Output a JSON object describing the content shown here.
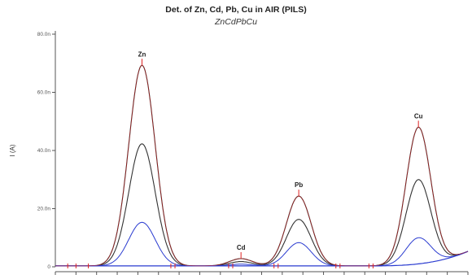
{
  "chart_data": {
    "type": "line",
    "title": "Det. of Zn, Cd, Pb, Cu in AIR (PILS)",
    "subtitle": "ZnCdPbCu",
    "ylabel": "I (A)",
    "ylim": [
      0,
      80
    ],
    "yticks": [
      0,
      20,
      40,
      60,
      80
    ],
    "ytick_labels": [
      "0",
      "20.0n",
      "40.0n",
      "60.0n",
      "80.0n"
    ],
    "y_unit": "nA",
    "x_range": [
      0,
      100
    ],
    "grid": false,
    "colors": {
      "peaks": "#222222",
      "markers": "#e02020",
      "blue": "#2a3bd0",
      "axis": "#555555"
    },
    "peaks": [
      {
        "label": "Zn",
        "x": 21,
        "heights": [
          69,
          42,
          15
        ]
      },
      {
        "label": "Cd",
        "x": 45,
        "heights": [
          2.5,
          1.5,
          0.6
        ]
      },
      {
        "label": "Pb",
        "x": 59,
        "heights": [
          24,
          16,
          8
        ]
      },
      {
        "label": "Cu",
        "x": 88,
        "heights": [
          47,
          29,
          9
        ]
      }
    ],
    "series": [
      {
        "values": "baseline + 69/42/15-level Gaussian peaks at x=21, 45, 59, 88"
      }
    ],
    "baseline_markers_x": [
      3,
      5,
      8,
      28,
      29,
      42,
      43,
      53,
      54,
      68,
      69,
      76,
      77
    ]
  }
}
